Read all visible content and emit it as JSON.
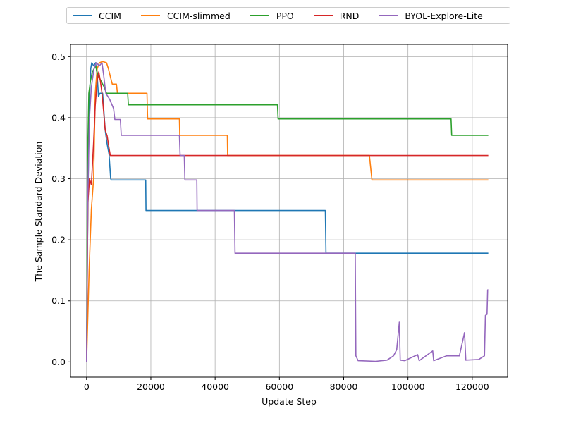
{
  "chart_data": {
    "type": "line",
    "xlabel": "Update Step",
    "ylabel": "The Sample Standard Deviation",
    "xlim": [
      -5000,
      131000
    ],
    "ylim": [
      -0.025,
      0.52
    ],
    "xticks": [
      0,
      20000,
      40000,
      60000,
      80000,
      100000,
      120000
    ],
    "xtick_labels": [
      "0",
      "20000",
      "40000",
      "60000",
      "80000",
      "100000",
      "120000"
    ],
    "yticks": [
      0.0,
      0.1,
      0.2,
      0.3,
      0.4,
      0.5
    ],
    "ytick_labels": [
      "0.0",
      "0.1",
      "0.2",
      "0.3",
      "0.4",
      "0.5"
    ],
    "grid": true,
    "legend_placement": "top-center outside",
    "series": [
      {
        "name": "CCIM",
        "color": "#1f77b4",
        "points": [
          [
            0,
            0
          ],
          [
            300,
            0.2
          ],
          [
            800,
            0.42
          ],
          [
            1300,
            0.48
          ],
          [
            1600,
            0.49
          ],
          [
            2200,
            0.485
          ],
          [
            2800,
            0.49
          ],
          [
            3300,
            0.47
          ],
          [
            3700,
            0.435
          ],
          [
            4200,
            0.44
          ],
          [
            5000,
            0.44
          ],
          [
            5800,
            0.38
          ],
          [
            6300,
            0.36
          ],
          [
            7000,
            0.34
          ],
          [
            7500,
            0.3
          ],
          [
            7700,
            0.298
          ],
          [
            18400,
            0.298
          ],
          [
            18500,
            0.248
          ],
          [
            74300,
            0.248
          ],
          [
            74500,
            0.178
          ],
          [
            125000,
            0.178
          ]
        ]
      },
      {
        "name": "CCIM-slimmed",
        "color": "#ff7f0e",
        "points": [
          [
            0,
            0
          ],
          [
            800,
            0.15
          ],
          [
            1500,
            0.25
          ],
          [
            2200,
            0.3
          ],
          [
            2700,
            0.44
          ],
          [
            3300,
            0.48
          ],
          [
            4000,
            0.49
          ],
          [
            5000,
            0.492
          ],
          [
            6200,
            0.49
          ],
          [
            6800,
            0.48
          ],
          [
            7500,
            0.465
          ],
          [
            8000,
            0.455
          ],
          [
            9300,
            0.455
          ],
          [
            9600,
            0.44
          ],
          [
            18800,
            0.44
          ],
          [
            19000,
            0.398
          ],
          [
            28900,
            0.398
          ],
          [
            29000,
            0.371
          ],
          [
            43800,
            0.371
          ],
          [
            43900,
            0.338
          ],
          [
            88000,
            0.338
          ],
          [
            88800,
            0.298
          ],
          [
            125000,
            0.298
          ]
        ]
      },
      {
        "name": "PPO",
        "color": "#2ca02c",
        "points": [
          [
            0,
            0
          ],
          [
            200,
            0.3
          ],
          [
            700,
            0.44
          ],
          [
            1200,
            0.46
          ],
          [
            1800,
            0.475
          ],
          [
            2800,
            0.485
          ],
          [
            3500,
            0.47
          ],
          [
            4500,
            0.46
          ],
          [
            5500,
            0.45
          ],
          [
            6200,
            0.44
          ],
          [
            12800,
            0.44
          ],
          [
            13000,
            0.421
          ],
          [
            59400,
            0.421
          ],
          [
            59600,
            0.398
          ],
          [
            113400,
            0.398
          ],
          [
            113600,
            0.371
          ],
          [
            125000,
            0.371
          ]
        ]
      },
      {
        "name": "RND",
        "color": "#d62728",
        "points": [
          [
            0,
            0
          ],
          [
            400,
            0.26
          ],
          [
            900,
            0.3
          ],
          [
            1500,
            0.29
          ],
          [
            2200,
            0.36
          ],
          [
            2700,
            0.42
          ],
          [
            3300,
            0.46
          ],
          [
            3800,
            0.475
          ],
          [
            4300,
            0.46
          ],
          [
            4800,
            0.44
          ],
          [
            5300,
            0.41
          ],
          [
            5800,
            0.38
          ],
          [
            6400,
            0.37
          ],
          [
            7000,
            0.35
          ],
          [
            7400,
            0.338
          ],
          [
            125000,
            0.338
          ]
        ]
      },
      {
        "name": "BYOL-Explore-Lite",
        "color": "#9467bd",
        "points": [
          [
            0,
            0
          ],
          [
            300,
            0.25
          ],
          [
            900,
            0.4
          ],
          [
            1500,
            0.45
          ],
          [
            2300,
            0.48
          ],
          [
            3000,
            0.49
          ],
          [
            4000,
            0.485
          ],
          [
            4800,
            0.49
          ],
          [
            5300,
            0.47
          ],
          [
            6000,
            0.44
          ],
          [
            7200,
            0.43
          ],
          [
            8400,
            0.415
          ],
          [
            8800,
            0.397
          ],
          [
            10500,
            0.397
          ],
          [
            10800,
            0.371
          ],
          [
            28900,
            0.371
          ],
          [
            29100,
            0.338
          ],
          [
            30400,
            0.338
          ],
          [
            30600,
            0.298
          ],
          [
            34300,
            0.298
          ],
          [
            34400,
            0.248
          ],
          [
            46000,
            0.248
          ],
          [
            46200,
            0.178
          ],
          [
            83600,
            0.178
          ],
          [
            83800,
            0.01
          ],
          [
            84500,
            0.002
          ],
          [
            90000,
            0.001
          ],
          [
            93500,
            0.003
          ],
          [
            95500,
            0.01
          ],
          [
            96500,
            0.02
          ],
          [
            97300,
            0.065
          ],
          [
            97600,
            0.003
          ],
          [
            99000,
            0.002
          ],
          [
            103000,
            0.012
          ],
          [
            103500,
            0.002
          ],
          [
            107700,
            0.018
          ],
          [
            108000,
            0.002
          ],
          [
            112000,
            0.01
          ],
          [
            116000,
            0.01
          ],
          [
            117600,
            0.048
          ],
          [
            118000,
            0.003
          ],
          [
            122000,
            0.004
          ],
          [
            123800,
            0.01
          ],
          [
            124100,
            0.076
          ],
          [
            124600,
            0.078
          ],
          [
            124800,
            0.118
          ],
          [
            125000,
            0.118
          ]
        ]
      }
    ]
  }
}
